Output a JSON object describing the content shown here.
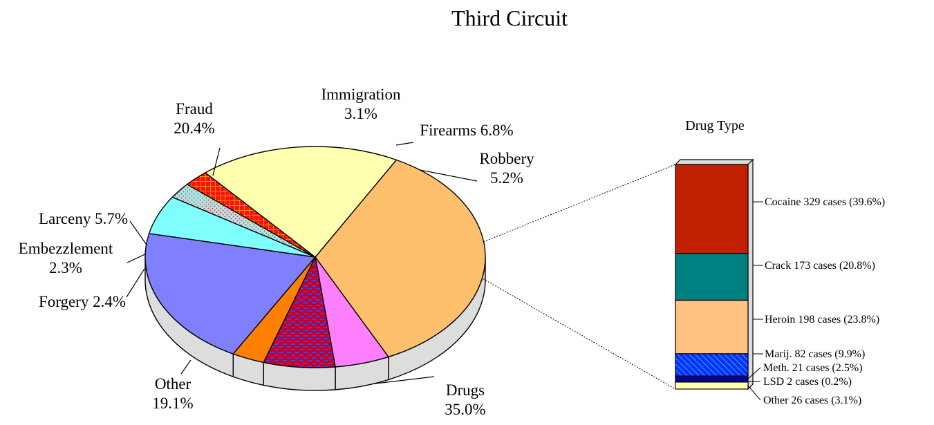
{
  "chart_data": [
    {
      "type": "pie",
      "title": "Third Circuit",
      "slices": [
        {
          "name": "Drugs",
          "value": 35.0,
          "label_lines": [
            "Drugs",
            "35.0%"
          ],
          "color": "#FFC06E",
          "pattern": "none"
        },
        {
          "name": "Robbery",
          "value": 5.2,
          "label_lines": [
            "Robbery",
            "5.2%"
          ],
          "color": "#FF80FF",
          "pattern": "none"
        },
        {
          "name": "Firearms",
          "value": 6.8,
          "label_lines": [
            "Firearms 6.8%"
          ],
          "color": "#C00030",
          "pattern": "dash-blue"
        },
        {
          "name": "Immigration",
          "value": 3.1,
          "label_lines": [
            "Immigration",
            "3.1%"
          ],
          "color": "#FF8000",
          "pattern": "none"
        },
        {
          "name": "Fraud",
          "value": 20.4,
          "label_lines": [
            "Fraud",
            "20.4%"
          ],
          "color": "#8080FF",
          "pattern": "none"
        },
        {
          "name": "Larceny",
          "value": 5.7,
          "label_lines": [
            "Larceny 5.7%"
          ],
          "color": "#80FFFF",
          "pattern": "none"
        },
        {
          "name": "Embezzlement",
          "value": 2.3,
          "label_lines": [
            "Embezzlement",
            "2.3%"
          ],
          "color": "#A0F0F0",
          "pattern": "dots-red"
        },
        {
          "name": "Forgery",
          "value": 2.4,
          "label_lines": [
            "Forgery  2.4%"
          ],
          "color": "#FF2020",
          "pattern": "cross-orange"
        },
        {
          "name": "Other",
          "value": 19.1,
          "label_lines": [
            "Other",
            "19.1%"
          ],
          "color": "#FFFFB0",
          "pattern": "none"
        }
      ]
    },
    {
      "type": "bar",
      "stacked": true,
      "title": "Drug Type",
      "segments": [
        {
          "name": "Cocaine",
          "cases": 329,
          "percent": 39.6,
          "label": "Cocaine 329 cases (39.6%)",
          "color": "#C02000",
          "pattern": "none"
        },
        {
          "name": "Crack",
          "cases": 173,
          "percent": 20.8,
          "label": "Crack 173 cases (20.8%)",
          "color": "#008080",
          "pattern": "none"
        },
        {
          "name": "Heroin",
          "cases": 198,
          "percent": 23.8,
          "label": "Heroin 198 cases (23.8%)",
          "color": "#FFC080",
          "pattern": "none"
        },
        {
          "name": "Marij.",
          "cases": 82,
          "percent": 9.9,
          "label": "Marij. 82 cases (9.9%)",
          "color": "#0030FF",
          "pattern": "hatch"
        },
        {
          "name": "Meth.",
          "cases": 21,
          "percent": 2.5,
          "label": "Meth. 21 cases (2.5%)",
          "color": "#0000A0",
          "pattern": "none"
        },
        {
          "name": "LSD",
          "cases": 2,
          "percent": 0.2,
          "label": "LSD 2 cases (0.2%)",
          "color": "#FF80FF",
          "pattern": "none"
        },
        {
          "name": "Other",
          "cases": 26,
          "percent": 3.1,
          "label": "Other 26 cases (3.1%)",
          "color": "#FFFFB0",
          "pattern": "none"
        }
      ]
    }
  ]
}
